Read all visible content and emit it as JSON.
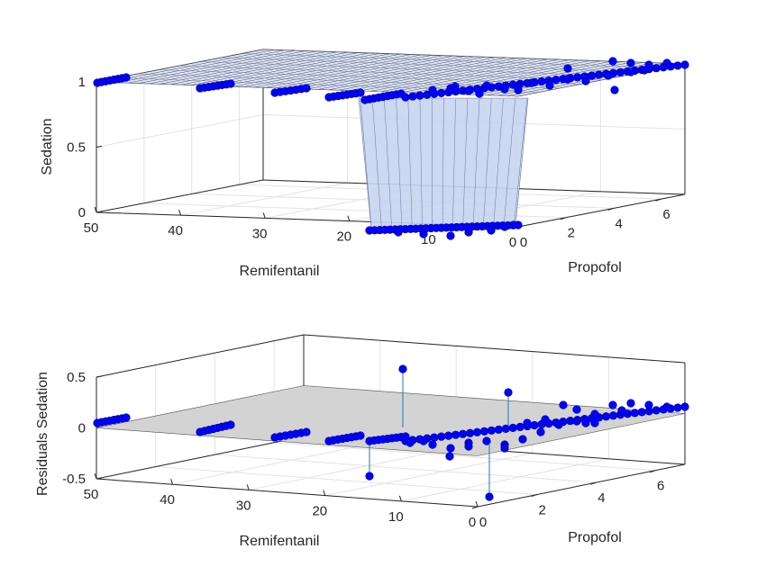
{
  "chart_data": [
    {
      "type": "surface3d",
      "zlabel": "Sedation",
      "xlabel": "Remifentanil",
      "ylabel": "Propofol",
      "xlim": [
        0,
        50
      ],
      "ylim": [
        0,
        7
      ],
      "zlim": [
        0,
        1
      ],
      "xticks": [
        "0",
        "10",
        "20",
        "30",
        "40",
        "50"
      ],
      "yticks": [
        "0",
        "2",
        "4",
        "6"
      ],
      "zticks": [
        "0",
        "0.5",
        "1"
      ],
      "grid": true,
      "surface_color": "#c8d4f0",
      "marker_color": "#0000ff",
      "points_description": "sedation = 1 for most (remifentanil, propofol) combinations; sedation = 0 near remifentanil < 10 and propofol < 2"
    },
    {
      "type": "surface3d",
      "zlabel": "Residuals Sedation",
      "xlabel": "Remifentanil",
      "ylabel": "Propofol",
      "xlim": [
        0,
        50
      ],
      "ylim": [
        0,
        7
      ],
      "zlim": [
        -0.5,
        0.5
      ],
      "xticks": [
        "0",
        "10",
        "20",
        "30",
        "40",
        "50"
      ],
      "yticks": [
        "0",
        "2",
        "4",
        "6"
      ],
      "zticks": [
        "-0.5",
        "0",
        "0.5"
      ],
      "grid": true,
      "plane_color": "#d3d3d3",
      "marker_color": "#0000ff",
      "stem_color": "#1f77b4",
      "stems": [
        {
          "x": 8,
          "y": 0.5,
          "z": 0.58
        },
        {
          "x": 22,
          "y": 0.4,
          "z": -0.56
        },
        {
          "x": 2,
          "y": 3.2,
          "z": 0.3
        },
        {
          "x": 3,
          "y": 1.5,
          "z": -0.6
        }
      ]
    }
  ]
}
